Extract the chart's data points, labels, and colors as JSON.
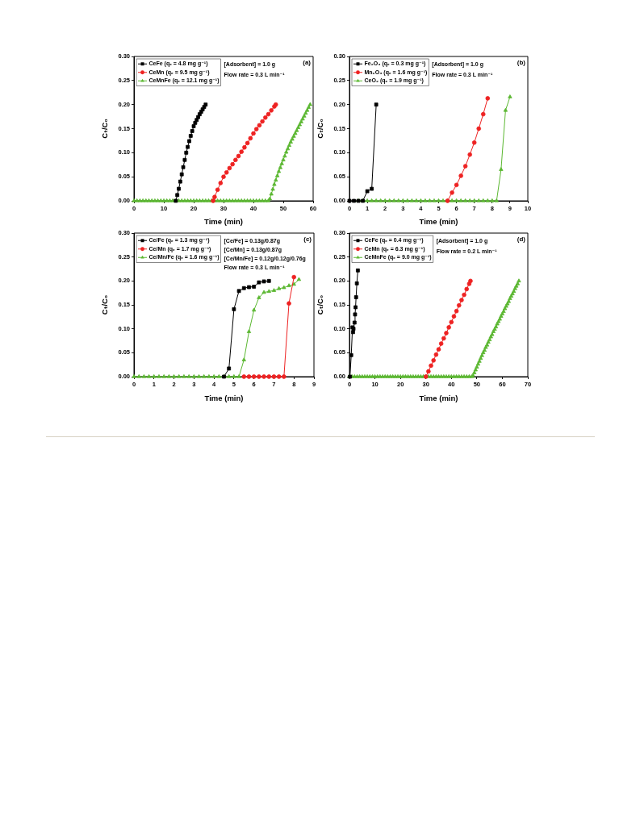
{
  "chart_data": [
    {
      "type": "line",
      "xlabel": "Time (min)",
      "ylabel": "Cₜ/C₀",
      "xlim": [
        0,
        60
      ],
      "xticks": [
        0,
        10,
        20,
        30,
        40,
        50,
        60
      ],
      "ylim": [
        0,
        0.3
      ],
      "yticks": [
        {
          "value": 0,
          "label": "0.00"
        },
        0.05,
        {
          "value": 0.1,
          "label": "0.10"
        },
        0.15,
        {
          "value": 0.2,
          "label": "0.20"
        },
        0.25,
        {
          "value": 0.3,
          "label": "0.30"
        }
      ],
      "legend": "top left",
      "annotations": [
        "[Adsorbent] = 1.0 g",
        "Flow rate = 0.3 L min⁻¹",
        "(a)"
      ],
      "series": [
        {
          "name": "CeFe (qₑ = 4.8 mg g⁻¹)",
          "color": "#000000",
          "marker": "square",
          "x": [
            14,
            14.5,
            15,
            15.5,
            16,
            16.5,
            17,
            17.5,
            18,
            18.5,
            19,
            19.5,
            20,
            20.5,
            21,
            21.5,
            22,
            22.5,
            23,
            23.5,
            24
          ],
          "values": [
            0,
            0.012,
            0.025,
            0.04,
            0.055,
            0.07,
            0.085,
            0.1,
            0.112,
            0.124,
            0.135,
            0.145,
            0.155,
            0.162,
            0.168,
            0.174,
            0.18,
            0.185,
            0.19,
            0.195,
            0.2
          ]
        },
        {
          "name": "CeMn (qₑ = 9.5 mg g⁻¹)",
          "color": "#ee2222",
          "marker": "circle",
          "x": [
            26.5,
            27,
            28,
            29,
            30,
            31,
            32,
            33,
            34,
            35,
            36,
            37,
            38,
            39,
            40,
            41,
            42,
            43,
            44,
            45,
            46,
            47,
            47.5
          ],
          "values": [
            0,
            0.008,
            0.023,
            0.037,
            0.05,
            0.059,
            0.068,
            0.076,
            0.085,
            0.093,
            0.102,
            0.111,
            0.12,
            0.13,
            0.14,
            0.149,
            0.157,
            0.165,
            0.173,
            0.18,
            0.188,
            0.196,
            0.2
          ]
        },
        {
          "name": "CeMnFe (qₑ = 12.1 mg g⁻¹)",
          "color": "#5cb832",
          "marker": "triangle",
          "x": [
            0,
            1,
            2,
            3,
            4,
            5,
            6,
            7,
            8,
            9,
            10,
            11,
            12,
            13,
            14,
            15,
            16,
            17,
            18,
            19,
            20,
            21,
            22,
            23,
            24,
            25,
            26,
            27,
            28,
            29,
            30,
            31,
            32,
            33,
            34,
            35,
            36,
            37,
            38,
            39,
            40,
            41,
            42,
            43,
            44,
            45,
            45.5,
            46,
            46.5,
            47,
            47.5,
            48,
            48.5,
            49,
            49.5,
            50,
            50.5,
            51,
            51.5,
            52,
            52.5,
            53,
            53.5,
            54,
            54.5,
            55,
            55.5,
            56,
            56.5,
            57,
            57.5,
            58,
            58.5,
            59
          ],
          "values": [
            0,
            0,
            0,
            0,
            0,
            0,
            0,
            0,
            0,
            0,
            0,
            0,
            0,
            0,
            0,
            0,
            0,
            0,
            0,
            0,
            0,
            0,
            0,
            0,
            0,
            0,
            0,
            0,
            0,
            0,
            0,
            0,
            0,
            0,
            0,
            0,
            0,
            0,
            0,
            0,
            0,
            0,
            0,
            0,
            0,
            0,
            0.004,
            0.014,
            0.024,
            0.034,
            0.043,
            0.052,
            0.061,
            0.069,
            0.077,
            0.085,
            0.093,
            0.101,
            0.108,
            0.115,
            0.122,
            0.128,
            0.134,
            0.14,
            0.146,
            0.152,
            0.158,
            0.164,
            0.17,
            0.176,
            0.182,
            0.188,
            0.194,
            0.2
          ]
        }
      ]
    },
    {
      "type": "line",
      "xlabel": "Time (min)",
      "ylabel": "Cₜ/C₀",
      "xlim": [
        0,
        10
      ],
      "xticks": [
        0,
        1,
        2,
        3,
        4,
        5,
        6,
        7,
        8,
        9,
        10
      ],
      "ylim": [
        0,
        0.3
      ],
      "yticks": [
        {
          "value": 0,
          "label": "0.00"
        },
        0.05,
        {
          "value": 0.1,
          "label": "0.10"
        },
        0.15,
        {
          "value": 0.2,
          "label": "0.20"
        },
        0.25,
        {
          "value": 0.3,
          "label": "0.30"
        }
      ],
      "legend": "top left",
      "annotations": [
        "[Adsorbent] = 1.0 g",
        "Flow rate = 0.3 L min⁻¹",
        "(b)"
      ],
      "series": [
        {
          "name": "Fe₂O₃ (qₑ = 0.3 mg g⁻¹)",
          "color": "#000000",
          "marker": "square",
          "x": [
            0,
            0.25,
            0.5,
            0.75,
            1,
            1.25,
            1.5
          ],
          "values": [
            0,
            0,
            0,
            0,
            0.02,
            0.025,
            0.2
          ]
        },
        {
          "name": "Mn₂O₃ (qₑ = 1.6 mg g⁻¹)",
          "color": "#ee2222",
          "marker": "circle",
          "x": [
            5.5,
            5.75,
            6,
            6.25,
            6.5,
            6.75,
            7,
            7.25,
            7.5,
            7.75
          ],
          "values": [
            0,
            0.017,
            0.033,
            0.052,
            0.072,
            0.096,
            0.121,
            0.15,
            0.18,
            0.213
          ]
        },
        {
          "name": "CeO₂ (qₑ = 1.9 mg g⁻¹)",
          "color": "#5cb832",
          "marker": "triangle",
          "x": [
            0.5,
            0.75,
            1,
            1.25,
            1.5,
            1.75,
            2,
            2.25,
            2.5,
            2.75,
            3,
            3.25,
            3.5,
            3.75,
            4,
            4.25,
            4.5,
            4.75,
            5,
            5.25,
            5.5,
            5.75,
            6,
            6.25,
            6.5,
            6.75,
            7,
            7.25,
            7.5,
            7.75,
            8,
            8.25,
            8.5,
            8.75,
            9
          ],
          "values": [
            0,
            0,
            0,
            0,
            0,
            0,
            0,
            0,
            0,
            0,
            0,
            0,
            0,
            0,
            0,
            0,
            0,
            0,
            0,
            0,
            0,
            0,
            0,
            0,
            0,
            0,
            0,
            0,
            0,
            0,
            0,
            0,
            0.065,
            0.188,
            0.216
          ]
        }
      ]
    },
    {
      "type": "line",
      "xlabel": "Time (min)",
      "ylabel": "Cₜ/C₀",
      "xlim": [
        0,
        9
      ],
      "xticks": [
        0,
        1,
        2,
        3,
        4,
        5,
        6,
        7,
        8,
        9
      ],
      "ylim": [
        0,
        0.3
      ],
      "yticks": [
        {
          "value": 0,
          "label": "0.00"
        },
        0.05,
        {
          "value": 0.1,
          "label": "0.10"
        },
        0.15,
        {
          "value": 0.2,
          "label": "0.20"
        },
        0.25,
        {
          "value": 0.3,
          "label": "0.30"
        }
      ],
      "legend": "top left",
      "annotations": [
        "[Ce/Fe] = 0.13g/0.87g",
        "[Ce/Mn] = 0.13g/0.87g",
        "[Ce/Mn/Fe] = 0.12g/0.12g/0.76g",
        "Flow rate = 0.3 L min⁻¹",
        "(c)"
      ],
      "series": [
        {
          "name": "Ce/Fe (qₑ = 1.3 mg g⁻¹)",
          "color": "#000000",
          "marker": "square",
          "x": [
            4.5,
            4.75,
            5,
            5.25,
            5.5,
            5.75,
            6,
            6.25,
            6.5,
            6.75
          ],
          "values": [
            0,
            0.017,
            0.141,
            0.179,
            0.185,
            0.187,
            0.188,
            0.197,
            0.199,
            0.2
          ]
        },
        {
          "name": "Ce/Mn (qₑ = 1.7 mg g⁻¹)",
          "color": "#ee2222",
          "marker": "circle",
          "x": [
            5.5,
            5.75,
            6,
            6.25,
            6.5,
            6.75,
            7,
            7.25,
            7.5,
            7.75,
            8
          ],
          "values": [
            0,
            0,
            0,
            0,
            0,
            0,
            0,
            0,
            0,
            0.153,
            0.208
          ]
        },
        {
          "name": "Ce/Mn/Fe (qₑ = 1.6 mg g⁻¹)",
          "color": "#5cb832",
          "marker": "triangle",
          "x": [
            0,
            0.25,
            0.5,
            0.75,
            1,
            1.25,
            1.5,
            1.75,
            2,
            2.25,
            2.5,
            2.75,
            3,
            3.25,
            3.5,
            3.75,
            4,
            4.25,
            4.5,
            4.75,
            5,
            5.25,
            5.5,
            5.75,
            6,
            6.25,
            6.5,
            6.75,
            7,
            7.25,
            7.5,
            7.75,
            8,
            8.25
          ],
          "values": [
            0,
            0,
            0,
            0,
            0,
            0,
            0,
            0,
            0,
            0,
            0,
            0,
            0,
            0,
            0,
            0,
            0,
            0,
            0,
            0,
            0,
            0,
            0.035,
            0.094,
            0.139,
            0.165,
            0.176,
            0.178,
            0.18,
            0.184,
            0.186,
            0.19,
            0.193,
            0.203
          ]
        }
      ]
    },
    {
      "type": "line",
      "xlabel": "Time (min)",
      "ylabel": "Cₜ/C₀",
      "xlim": [
        0,
        70
      ],
      "xticks": [
        0,
        10,
        20,
        30,
        40,
        50,
        60,
        70
      ],
      "ylim": [
        0,
        0.3
      ],
      "yticks": [
        {
          "value": 0,
          "label": "0.00"
        },
        0.05,
        {
          "value": 0.1,
          "label": "0.10"
        },
        0.15,
        {
          "value": 0.2,
          "label": "0.20"
        },
        0.25,
        {
          "value": 0.3,
          "label": "0.30"
        }
      ],
      "legend": "top left",
      "annotations": [
        "[Adsorbent] = 1.0 g",
        "Flow rate = 0.2 L min⁻¹",
        "(d)"
      ],
      "series": [
        {
          "name": "CeFe (qₑ = 0.4 mg g⁻¹)",
          "color": "#000000",
          "marker": "square",
          "x": [
            0.2,
            0.7,
            1.2,
            1.4,
            1.6,
            2,
            2.2,
            2.4,
            2.6,
            2.9,
            3.3
          ],
          "values": [
            0,
            0.045,
            0.103,
            0.093,
            0.1,
            0.113,
            0.13,
            0.145,
            0.166,
            0.195,
            0.222
          ]
        },
        {
          "name": "CeMn (qₑ = 6.3 mg g⁻¹)",
          "color": "#ee2222",
          "marker": "circle",
          "x": [
            30,
            31,
            32,
            33,
            34,
            35,
            36,
            37,
            38,
            39,
            40,
            41,
            42,
            43,
            44,
            45,
            46,
            47,
            47.5
          ],
          "values": [
            0,
            0.011,
            0.023,
            0.034,
            0.046,
            0.057,
            0.069,
            0.08,
            0.091,
            0.103,
            0.114,
            0.126,
            0.137,
            0.149,
            0.16,
            0.171,
            0.183,
            0.194,
            0.2
          ]
        },
        {
          "name": "CeMnFe (qₑ = 9.0 mg g⁻¹)",
          "color": "#5cb832",
          "marker": "triangle",
          "x": [
            0,
            1,
            2,
            3,
            4,
            5,
            6,
            7,
            8,
            9,
            10,
            11,
            12,
            13,
            14,
            15,
            16,
            17,
            18,
            19,
            20,
            21,
            22,
            23,
            24,
            25,
            26,
            27,
            28,
            29,
            30,
            31,
            32,
            33,
            34,
            35,
            36,
            37,
            38,
            39,
            40,
            41,
            42,
            43,
            44,
            45,
            46,
            47,
            48,
            48.5,
            49,
            49.5,
            50,
            50.5,
            51,
            51.5,
            52,
            52.5,
            53,
            53.5,
            54,
            54.5,
            55,
            55.5,
            56,
            56.5,
            57,
            57.5,
            58,
            58.5,
            59,
            59.5,
            60,
            60.5,
            61,
            61.5,
            62,
            62.5,
            63,
            63.5,
            64,
            64.5,
            65,
            65.5,
            66,
            66.5
          ],
          "values": [
            0,
            0,
            0,
            0,
            0,
            0,
            0,
            0,
            0,
            0,
            0,
            0,
            0,
            0,
            0,
            0,
            0,
            0,
            0,
            0,
            0,
            0,
            0,
            0,
            0,
            0,
            0,
            0,
            0,
            0,
            0,
            0,
            0,
            0,
            0,
            0,
            0,
            0,
            0,
            0,
            0,
            0,
            0,
            0,
            0,
            0,
            0,
            0,
            0,
            0.002,
            0.008,
            0.014,
            0.02,
            0.026,
            0.032,
            0.038,
            0.044,
            0.05,
            0.055,
            0.061,
            0.066,
            0.072,
            0.077,
            0.083,
            0.088,
            0.094,
            0.099,
            0.104,
            0.11,
            0.115,
            0.12,
            0.126,
            0.131,
            0.136,
            0.142,
            0.147,
            0.152,
            0.157,
            0.163,
            0.168,
            0.173,
            0.178,
            0.184,
            0.189,
            0.194,
            0.2
          ]
        }
      ]
    }
  ]
}
